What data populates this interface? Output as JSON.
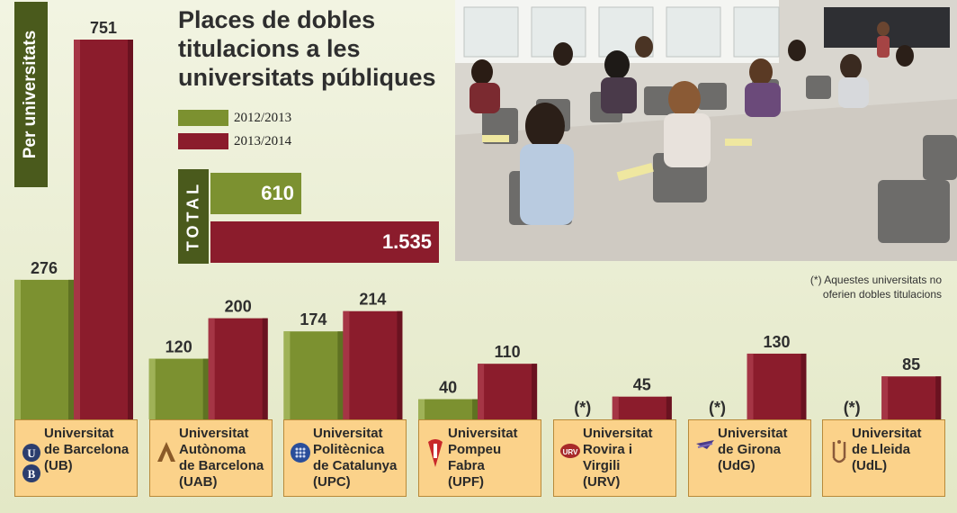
{
  "side_label": "Per universitats",
  "title": "Places de dobles titulacions a les universitats públiques",
  "legend": [
    {
      "label": "2012/2013",
      "color": "#7c9130"
    },
    {
      "label": "2013/2014",
      "color": "#8b1c2c"
    }
  ],
  "total": {
    "label": "TOTAL",
    "values": [
      {
        "period": "2012/2013",
        "value": 610,
        "display": "610"
      },
      {
        "period": "2013/2014",
        "value": 1535,
        "display": "1.535"
      }
    ]
  },
  "note": "(*) Aquestes universitats no oferien dobles titulacions",
  "photo_icon": "classroom-photo",
  "chart_data": {
    "type": "bar",
    "categories": [
      "Universitat de Barcelona (UB)",
      "Universitat Autònoma de Barcelona (UAB)",
      "Universitat Politècnica de Catalunya (UPC)",
      "Universitat Pompeu Fabra (UPF)",
      "Universitat Rovira i Virgili (URV)",
      "Universitat de Girona (UdG)",
      "Universitat de Lleida (UdL)"
    ],
    "series": [
      {
        "name": "2012/2013",
        "values": [
          276,
          120,
          174,
          40,
          null,
          null,
          null
        ],
        "labels": [
          "276",
          "120",
          "174",
          "40",
          "(*)",
          "(*)",
          "(*)"
        ]
      },
      {
        "name": "2013/2014",
        "values": [
          751,
          200,
          214,
          110,
          45,
          130,
          85
        ],
        "labels": [
          "751",
          "200",
          "214",
          "110",
          "45",
          "130",
          "85"
        ]
      }
    ],
    "ylim": [
      0,
      751
    ]
  },
  "universities": [
    {
      "name": "Universitat\nde Barcelona\n(UB)",
      "logo": "ub-logo"
    },
    {
      "name": "Universitat\nAutònoma\nde Barcelona\n(UAB)",
      "logo": "uab-logo"
    },
    {
      "name": "Universitat\nPolitècnica\nde Catalunya\n(UPC)",
      "logo": "upc-logo"
    },
    {
      "name": "Universitat\nPompeu\nFabra\n(UPF)",
      "logo": "upf-logo"
    },
    {
      "name": "Universitat\nRovira i\nVirgili\n(URV)",
      "logo": "urv-logo"
    },
    {
      "name": "Universitat\nde Girona\n(UdG)",
      "logo": "udg-logo"
    },
    {
      "name": "Universitat\nde Lleida\n(UdL)",
      "logo": "udl-logo"
    }
  ]
}
